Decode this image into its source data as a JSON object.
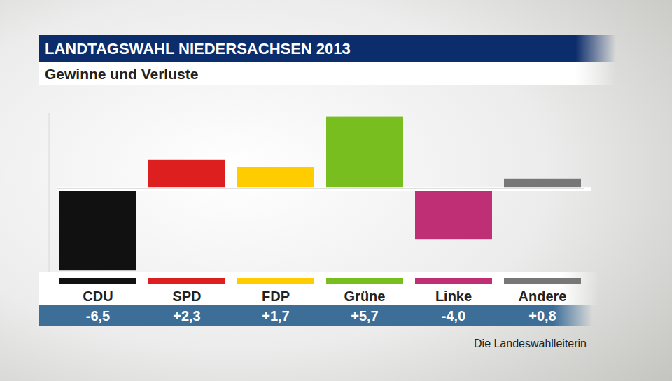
{
  "chart_data": {
    "type": "bar",
    "title": "LANDTAGSWAHL NIEDERSACHSEN 2013",
    "subtitle": "Gewinne und Verluste",
    "source": "Die Landeswahlleiterin",
    "categories": [
      "CDU",
      "SPD",
      "FDP",
      "Grüne",
      "Linke",
      "Andere"
    ],
    "values": [
      -6.5,
      2.3,
      1.7,
      5.7,
      -4.0,
      0.8
    ],
    "value_labels": [
      "-6,5",
      "+2,3",
      "+1,7",
      "+5,7",
      "-4,0",
      "+0,8"
    ],
    "colors": [
      "#111111",
      "#dd1f1f",
      "#ffcc00",
      "#78be1e",
      "#be2f76",
      "#777777"
    ],
    "ylim": [
      -6.6,
      6.0
    ],
    "yticks": [
      0
    ],
    "grid": true,
    "data_labels": true,
    "tick_labels": false
  }
}
